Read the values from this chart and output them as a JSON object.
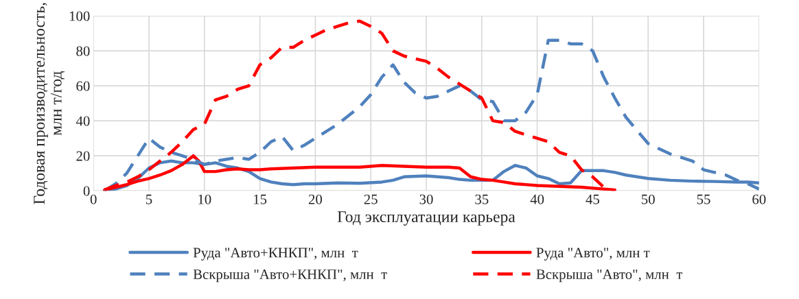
{
  "chart_data": {
    "type": "line",
    "xlabel": "Год эксплуатации карьера",
    "ylabel": "Годовая производительность,\nмлн т/год",
    "xlim": [
      0,
      60
    ],
    "xticks": [
      0,
      5,
      10,
      15,
      20,
      25,
      30,
      35,
      40,
      45,
      50,
      55,
      60
    ],
    "ylim": [
      0,
      100
    ],
    "yticks": [
      0,
      20,
      40,
      60,
      80,
      100
    ],
    "grid": true,
    "legend": "bottom",
    "marker": "none",
    "series": [
      {
        "name": "Руда \"Авто+КНКП\", млн  т",
        "color": "#4f81bd",
        "line_style": "solid",
        "x": [
          1,
          2,
          3,
          4,
          5,
          6,
          7,
          8,
          9,
          10,
          11,
          12,
          13,
          14,
          15,
          16,
          17,
          18,
          19,
          20,
          22,
          24,
          26,
          27,
          28,
          30,
          32,
          33,
          34,
          36,
          37,
          38,
          39,
          40,
          41,
          42,
          43,
          44,
          45,
          46,
          47,
          48,
          50,
          52,
          54,
          56,
          58,
          59,
          60
        ],
        "values": [
          0,
          1,
          3,
          7,
          13,
          16,
          17,
          16,
          16,
          15,
          16,
          14,
          13,
          11,
          7,
          5,
          4,
          3.5,
          4,
          4,
          4.5,
          4.3,
          5,
          6,
          8,
          8.5,
          7.5,
          6.5,
          6,
          6,
          11,
          14.5,
          13,
          8.5,
          7,
          4,
          4.5,
          11.5,
          11.5,
          11.5,
          10.5,
          9,
          7,
          6,
          5.5,
          5.3,
          5,
          5,
          4.5
        ]
      },
      {
        "name": "Руда \"Авто\", млн т",
        "color": "#ff0000",
        "line_style": "solid",
        "x": [
          1,
          2,
          3,
          4,
          5,
          6,
          7,
          8,
          9,
          9.5,
          10,
          11,
          12,
          13,
          14,
          15,
          16,
          18,
          20,
          22,
          24,
          26,
          28,
          30,
          32,
          33,
          34,
          35,
          36,
          37,
          38,
          40,
          42,
          44,
          46,
          47
        ],
        "values": [
          0.5,
          2,
          3.5,
          5.5,
          7,
          9,
          11.5,
          15,
          20,
          17,
          11,
          11,
          12,
          12.5,
          12,
          12,
          12.5,
          13,
          13.5,
          13.5,
          13.5,
          14.5,
          14,
          13.5,
          13.5,
          13,
          8,
          6.5,
          6,
          5,
          4,
          3,
          2.5,
          2,
          1,
          0.5
        ]
      },
      {
        "name": "Вскрыша \"Авто+КНКП\", млн  т",
        "color": "#4f81bd",
        "line_style": "dashed",
        "x": [
          1,
          2,
          3,
          4,
          5,
          6,
          7,
          8,
          9,
          10,
          11,
          12,
          13,
          14,
          15,
          16,
          17,
          18,
          19,
          20,
          22,
          24,
          25,
          26,
          27,
          28,
          29,
          30,
          31,
          32,
          33,
          34,
          35,
          36,
          37,
          38,
          39,
          40,
          41,
          42,
          43,
          44,
          45,
          46,
          47,
          48,
          50,
          52,
          54,
          55,
          57,
          58,
          59,
          60
        ],
        "values": [
          0,
          4,
          10,
          20,
          30,
          25,
          22,
          20,
          18,
          15,
          17,
          18,
          19,
          18,
          22,
          28,
          31,
          23,
          26,
          30,
          38,
          48,
          55,
          65,
          72,
          62,
          56,
          53,
          54,
          57,
          60,
          57,
          52,
          51,
          40,
          40,
          45,
          55,
          86,
          86,
          84,
          84,
          80,
          65,
          53,
          42,
          27,
          21,
          17,
          12,
          9,
          6,
          4,
          1
        ]
      },
      {
        "name": "Вскрыша \"Авто\", млн  т",
        "color": "#ff0000",
        "line_style": "dashed",
        "x": [
          1,
          2,
          3,
          4,
          5,
          6,
          7,
          8,
          9,
          10,
          11,
          12,
          13,
          14,
          15,
          16,
          17,
          18,
          19,
          20,
          21,
          22,
          23,
          24,
          25,
          26,
          27,
          28,
          30,
          31,
          32,
          33,
          34,
          35,
          36,
          37,
          38,
          39,
          40,
          41,
          42,
          43,
          44,
          45,
          46,
          47
        ],
        "values": [
          0.5,
          3,
          5,
          8,
          12,
          17,
          22,
          28,
          35,
          38,
          52,
          54,
          58,
          60,
          72,
          76,
          82,
          82,
          86,
          89,
          92,
          94,
          96,
          97,
          94,
          90,
          80,
          77,
          74,
          70,
          65,
          61,
          57,
          53,
          40,
          39,
          34,
          32,
          30,
          28,
          22,
          20,
          12,
          8,
          2,
          0
        ]
      }
    ]
  }
}
